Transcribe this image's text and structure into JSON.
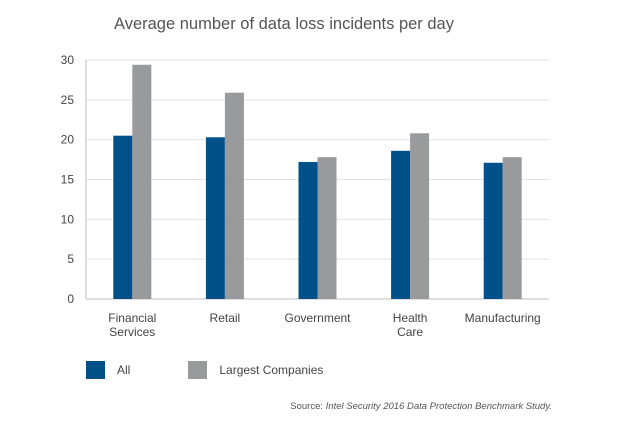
{
  "chart_data": {
    "type": "bar",
    "title": "Average number of data loss incidents per day",
    "categories": [
      [
        "Financial",
        "Services"
      ],
      [
        "Retail"
      ],
      [
        "Government"
      ],
      [
        "Health",
        "Care"
      ],
      [
        "Manufacturing"
      ]
    ],
    "series": [
      {
        "name": "All",
        "color": "#00508a",
        "values": [
          20.5,
          20.3,
          17.2,
          18.6,
          17.1
        ]
      },
      {
        "name": "Largest Companies",
        "color": "#999a9c",
        "values": [
          29.4,
          25.9,
          17.8,
          20.8,
          17.8
        ]
      }
    ],
    "ylim": [
      0,
      30
    ],
    "yticks": [
      0,
      5,
      10,
      15,
      20,
      25,
      30
    ],
    "grid": true,
    "legend": "bottom-left"
  },
  "source": {
    "label": "Source:",
    "text": "Intel Security 2016 Data Protection Benchmark Study."
  }
}
